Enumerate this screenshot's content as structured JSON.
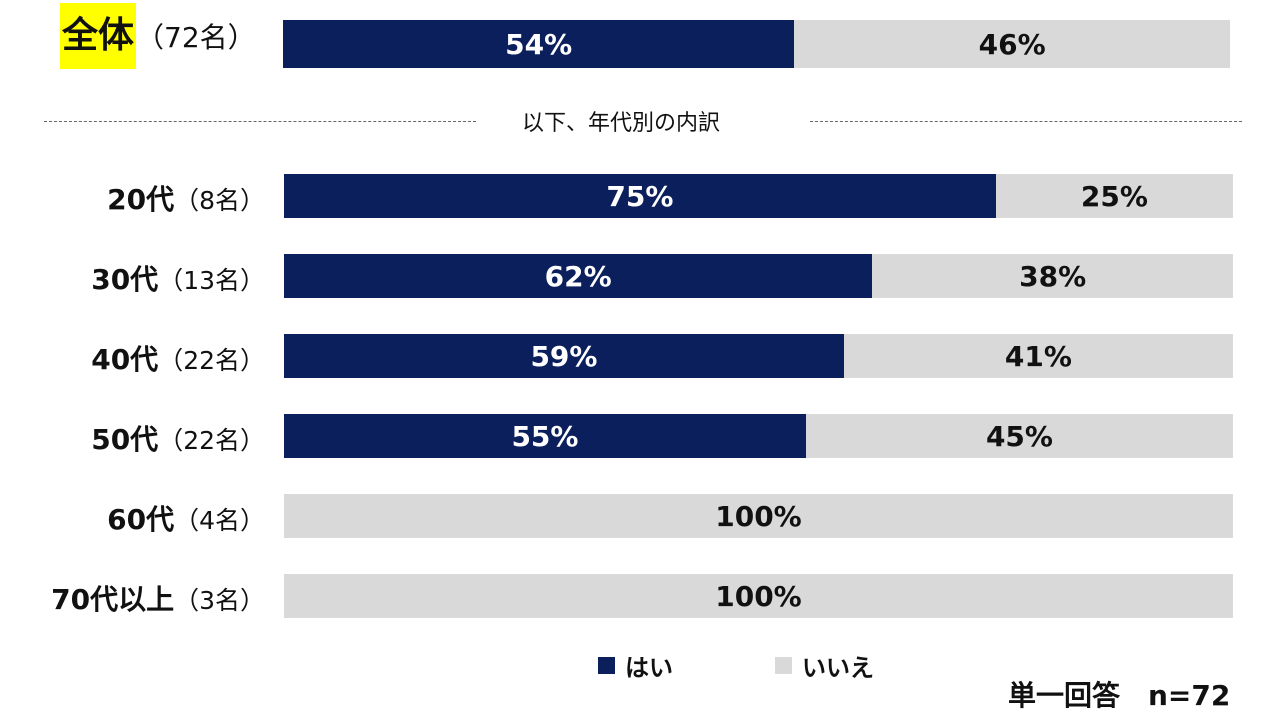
{
  "colors": {
    "yes": "#0b1f5c",
    "no": "#d9d9d9",
    "highlight": "#ffff00"
  },
  "overall": {
    "label": "全体",
    "count": "（72名）",
    "yes": 54,
    "no": 46,
    "yes_label": "54%",
    "no_label": "46%"
  },
  "divider": {
    "text": "以下、年代別の内訳"
  },
  "legend": {
    "yes_label": "はい",
    "no_label": "いいえ"
  },
  "footer": {
    "text": "単一回答　n=72"
  },
  "chart_data": {
    "type": "bar",
    "orientation": "horizontal",
    "stacked": true,
    "normalized_percent": true,
    "categories": [
      "20代",
      "30代",
      "40代",
      "50代",
      "60代",
      "70代以上"
    ],
    "counts": [
      "（8名）",
      "（13名）",
      "（22名）",
      "（22名）",
      "（4名）",
      "（3名）"
    ],
    "series": [
      {
        "name": "はい",
        "values": [
          75,
          62,
          59,
          55,
          0,
          0
        ],
        "labels": [
          "75%",
          "62%",
          "59%",
          "55%",
          "",
          ""
        ]
      },
      {
        "name": "いいえ",
        "values": [
          25,
          38,
          41,
          45,
          100,
          100
        ],
        "labels": [
          "25%",
          "38%",
          "41%",
          "45%",
          "100%",
          "100%"
        ]
      }
    ],
    "legend_position": "bottom",
    "grid": false
  }
}
